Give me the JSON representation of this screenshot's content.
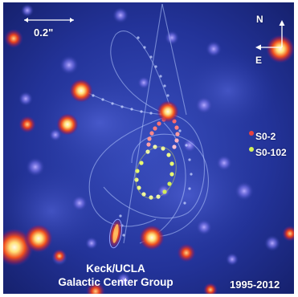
{
  "image": {
    "scale_bar": {
      "label": "0.2\""
    },
    "compass": {
      "north": "N",
      "east": "E"
    },
    "legend": [
      {
        "label": "S0-2",
        "color": "#e84040"
      },
      {
        "label": "S0-102",
        "color": "#d4f25a"
      }
    ],
    "credit": [
      "Keck/UCLA",
      "Galactic Center Group"
    ],
    "years": "1995-2012",
    "colors": {
      "sky_background": "#1d2c8f",
      "star_core": "#fff6c8",
      "star_halo": "#c8321e",
      "orbit_line": "#b4c8ff"
    }
  }
}
